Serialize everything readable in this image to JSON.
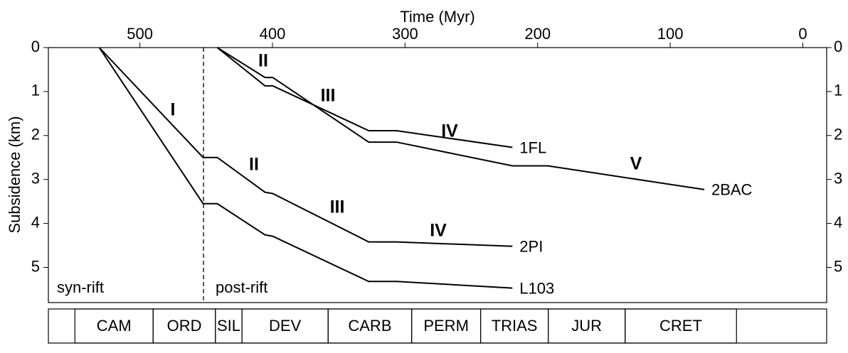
{
  "chart_data": {
    "type": "line",
    "title": "Time (Myr)",
    "y_label": "Subsidence (km)",
    "xlim": [
      569,
      -18
    ],
    "xticks": [
      500,
      400,
      300,
      200,
      100,
      0
    ],
    "ylim": [
      0,
      5.8
    ],
    "yticks": [
      0,
      1,
      2,
      3,
      4,
      5
    ],
    "series": [
      {
        "name": "1FL",
        "color": "#000000",
        "x": [
          441.6,
          405.6,
          399.8,
          327.4,
          306.4,
          219.0
        ],
        "values": [
          0,
          0.87,
          0.87,
          1.89,
          1.89,
          2.27
        ]
      },
      {
        "name": "2BAC",
        "color": "#000000",
        "x": [
          441.6,
          405.6,
          399.8,
          327.4,
          306.4,
          219.0,
          192.2,
          74.3
        ],
        "values": [
          0,
          0.68,
          0.68,
          2.15,
          2.15,
          2.69,
          2.69,
          3.23
        ]
      },
      {
        "name": "2PI",
        "color": "#000000",
        "x": [
          530.6,
          452.3,
          441.6,
          405.6,
          399.8,
          327.4,
          306.4,
          219.0
        ],
        "values": [
          0,
          2.5,
          2.5,
          3.29,
          3.32,
          4.42,
          4.42,
          4.52
        ]
      },
      {
        "name": "L103",
        "color": "#000000",
        "x": [
          530.6,
          452.3,
          441.6,
          405.6,
          399.8,
          327.4,
          306.4,
          219.0
        ],
        "values": [
          0,
          3.55,
          3.55,
          4.26,
          4.29,
          5.32,
          5.32,
          5.47
        ]
      }
    ],
    "rift_boundary": 452,
    "annotations": [
      "I",
      "II",
      "III",
      "IV",
      "V",
      "II",
      "III",
      "IV",
      "syn-rift",
      "post-rift"
    ],
    "periods": {
      "names": [
        "CAM",
        "ORD",
        "SIL",
        "DEV",
        "CARB",
        "PERM",
        "TRIAS",
        "JUR",
        "CRET"
      ],
      "boundaries": [
        549,
        490,
        443,
        423,
        358,
        295,
        243,
        192,
        134,
        50
      ]
    }
  }
}
